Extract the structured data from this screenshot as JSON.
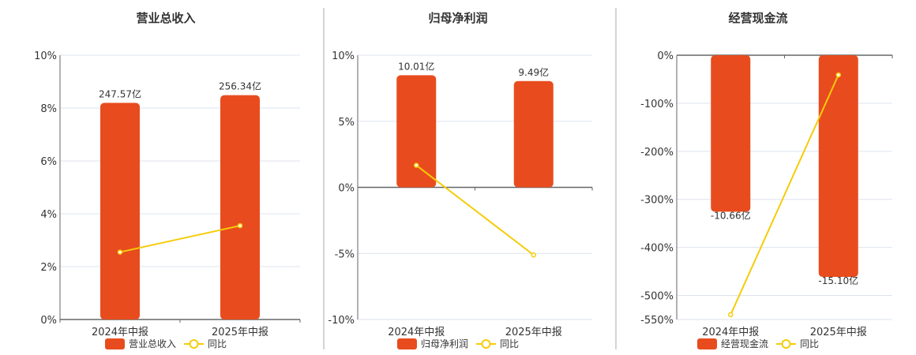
{
  "colors": {
    "bar": "#e84c1e",
    "line": "#f5cc0a",
    "grid": "#dde3ef",
    "axis": "#666"
  },
  "chart_data": [
    {
      "type": "bar+line",
      "title": "营业总收入",
      "categories": [
        "2024年中报",
        "2025年中报"
      ],
      "bar_series": {
        "name": "营业总收入",
        "values": [
          247.57,
          256.34
        ],
        "labels": [
          "247.57亿",
          "256.34亿"
        ],
        "unit": "亿"
      },
      "line_series": {
        "name": "同比",
        "values": [
          2.55,
          3.55
        ],
        "unit": "%"
      },
      "ylim": [
        0,
        10
      ],
      "yticks": [
        0,
        2,
        4,
        6,
        8,
        10
      ],
      "ytick_labels": [
        "0%",
        "2%",
        "4%",
        "6%",
        "8%",
        "10%"
      ],
      "bar_ylim": [
        0,
        302
      ],
      "legend": "bottom"
    },
    {
      "type": "bar+line",
      "title": "归母净利润",
      "categories": [
        "2024年中报",
        "2025年中报"
      ],
      "bar_series": {
        "name": "归母净利润",
        "values": [
          10.01,
          9.49
        ],
        "labels": [
          "10.01亿",
          "9.49亿"
        ],
        "unit": "亿"
      },
      "line_series": {
        "name": "同比",
        "values": [
          1.67,
          -5.12
        ],
        "unit": "%"
      },
      "ylim": [
        -10,
        10
      ],
      "yticks": [
        -10,
        -5,
        0,
        5,
        10
      ],
      "ytick_labels": [
        "-10%",
        "-5%",
        "0%",
        "5%",
        "10%"
      ],
      "bar_ylim": [
        -11.8,
        11.8
      ],
      "legend": "bottom"
    },
    {
      "type": "bar+line",
      "title": "经营现金流",
      "categories": [
        "2024年中报",
        "2025年中报"
      ],
      "bar_series": {
        "name": "经营现金流",
        "values": [
          -10.66,
          -15.1
        ],
        "labels": [
          "-10.66亿",
          "-15.10亿"
        ],
        "unit": "亿"
      },
      "line_series": {
        "name": "同比",
        "values": [
          -540,
          -41
        ],
        "unit": "%"
      },
      "ylim": [
        -550,
        0
      ],
      "yticks": [
        -550,
        -500,
        -400,
        -300,
        -200,
        -100,
        0
      ],
      "ytick_labels": [
        "-550%",
        "-500%",
        "-400%",
        "-300%",
        "-200%",
        "-100%",
        "0%"
      ],
      "bar_ylim": [
        -18,
        0
      ],
      "legend": "bottom"
    }
  ]
}
